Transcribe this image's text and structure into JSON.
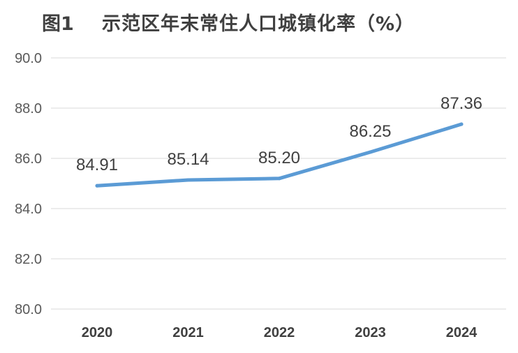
{
  "title": {
    "figure_label": "图1",
    "text": "示范区年末常住人口城镇化率（%）"
  },
  "colors": {
    "line": "#5B9BD5",
    "grid": "#D9D9D9",
    "text": "#404040"
  },
  "chart_data": {
    "type": "line",
    "title": "图1 示范区年末常住人口城镇化率（%）",
    "xlabel": "",
    "ylabel": "",
    "categories": [
      "2020",
      "2021",
      "2022",
      "2023",
      "2024"
    ],
    "series": [
      {
        "values": [
          84.91,
          85.14,
          85.2,
          86.25,
          87.36
        ],
        "labels": [
          "84.91",
          "85.14",
          "85.20",
          "86.25",
          "87.36"
        ]
      }
    ],
    "ylim": [
      80.0,
      90.0
    ],
    "yticks": [
      "80.0",
      "82.0",
      "84.0",
      "86.0",
      "88.0",
      "90.0"
    ],
    "grid": true,
    "legend": "none"
  }
}
